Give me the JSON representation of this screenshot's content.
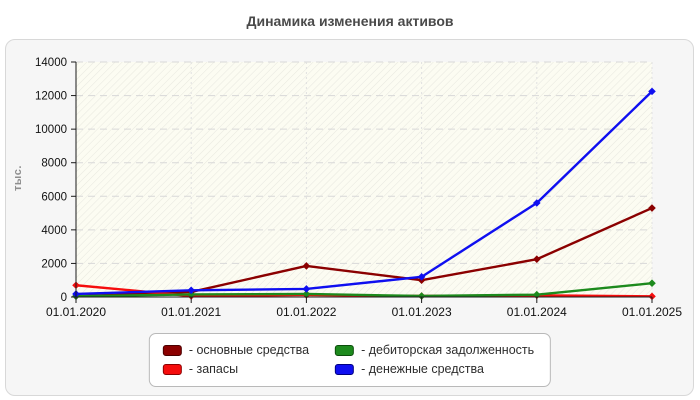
{
  "title": "Динамика изменения активов",
  "chart_data": {
    "type": "line",
    "title": "Динамика изменения активов",
    "ylabel": "тыс.",
    "xlabel": "",
    "x": [
      "01.01.2020",
      "01.01.2021",
      "01.01.2022",
      "01.01.2023",
      "01.01.2024",
      "01.01.2025"
    ],
    "ylim": [
      0,
      14000
    ],
    "yticks": [
      0,
      2000,
      4000,
      6000,
      8000,
      10000,
      12000,
      14000
    ],
    "grid": true,
    "legend_position": "bottom",
    "legend_prefix": "- ",
    "series": [
      {
        "name": "основные средства",
        "color": "#8b0000",
        "edge": "#4a0000",
        "values": [
          50,
          300,
          1850,
          1000,
          2250,
          5300
        ]
      },
      {
        "name": "запасы",
        "color": "#f50d0d",
        "edge": "#8b0000",
        "values": [
          700,
          60,
          120,
          60,
          100,
          40
        ]
      },
      {
        "name": "дебиторская задолженность",
        "color": "#1d8a1d",
        "edge": "#0b4d0b",
        "values": [
          50,
          150,
          180,
          60,
          140,
          820
        ]
      },
      {
        "name": "денежные средства",
        "color": "#0f0ff0",
        "edge": "#000080",
        "values": [
          180,
          400,
          480,
          1200,
          5600,
          12250
        ]
      }
    ]
  }
}
